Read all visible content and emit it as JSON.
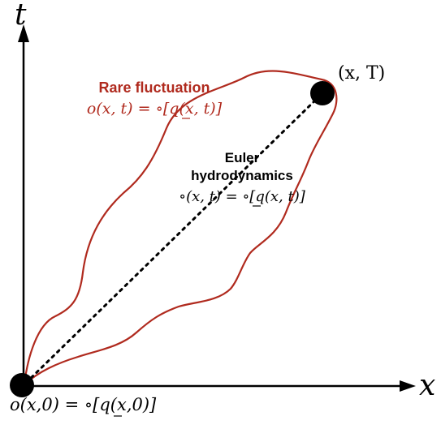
{
  "axes": {
    "x_label": "x",
    "t_label": "t"
  },
  "points": {
    "end_label": "(x, T)",
    "start_label": "o(x,0) = ∘[q(x,0)]"
  },
  "rare_fluctuation": {
    "title": "Rare fluctuation",
    "equation": "o(x, t) = ∘[q(x, t)]"
  },
  "euler": {
    "title_line1": "Euler",
    "title_line2": "hydrodynamics",
    "equation": "∘(x, t) = ∘[q(x, t)]"
  },
  "colors": {
    "axis": "#000000",
    "fluctuation_curve": "#b02a1e",
    "fluctuation_text": "#b02a1e",
    "euler_text": "#000000",
    "points": "#000000"
  }
}
